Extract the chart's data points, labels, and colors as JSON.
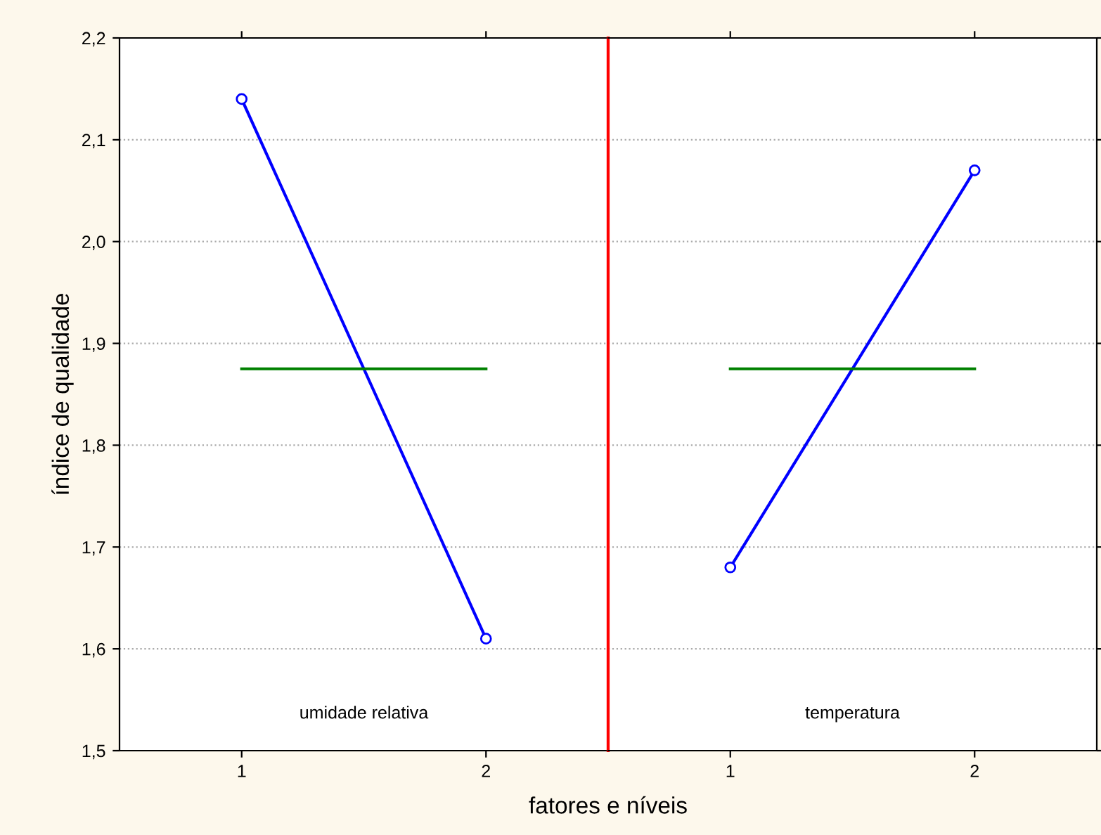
{
  "chart_data": [
    {
      "type": "line",
      "xlabel": "fatores e níveis",
      "ylabel": "índice de qualidade",
      "categories": [
        "1",
        "2"
      ],
      "series": [
        {
          "color": "#0000ff",
          "values": [
            2.14,
            1.61
          ],
          "marker": "circle"
        },
        {
          "color": "#008000",
          "values": [
            1.875,
            1.875
          ],
          "marker": "none"
        }
      ],
      "ylim": [
        1.5,
        2.2
      ],
      "yticks": [
        {
          "value": 1.5,
          "label": "1,5"
        },
        {
          "value": 1.6,
          "label": "1,6"
        },
        {
          "value": 1.7,
          "label": "1,7"
        },
        {
          "value": 1.8,
          "label": "1,8"
        },
        {
          "value": 1.9,
          "label": "1,9"
        },
        {
          "value": 2.0,
          "label": "2,0"
        },
        {
          "value": 2.1,
          "label": "2,1"
        },
        {
          "value": 2.2,
          "label": "2,2"
        }
      ],
      "annotations": [
        "umidade relativa"
      ],
      "grid": "y",
      "legend": false
    },
    {
      "type": "line",
      "categories": [
        "1",
        "2"
      ],
      "series": [
        {
          "color": "#0000ff",
          "values": [
            1.68,
            2.07
          ],
          "marker": "circle"
        },
        {
          "color": "#008000",
          "values": [
            1.875,
            1.875
          ],
          "marker": "none"
        }
      ],
      "ylim": [
        1.5,
        2.2
      ],
      "yticks": [
        1.5,
        1.6,
        1.7,
        1.8,
        1.9,
        2.0,
        2.1,
        2.2
      ],
      "annotations": [
        "temperatura"
      ],
      "tick_labels": "x",
      "grid": "y",
      "legend": false
    }
  ]
}
